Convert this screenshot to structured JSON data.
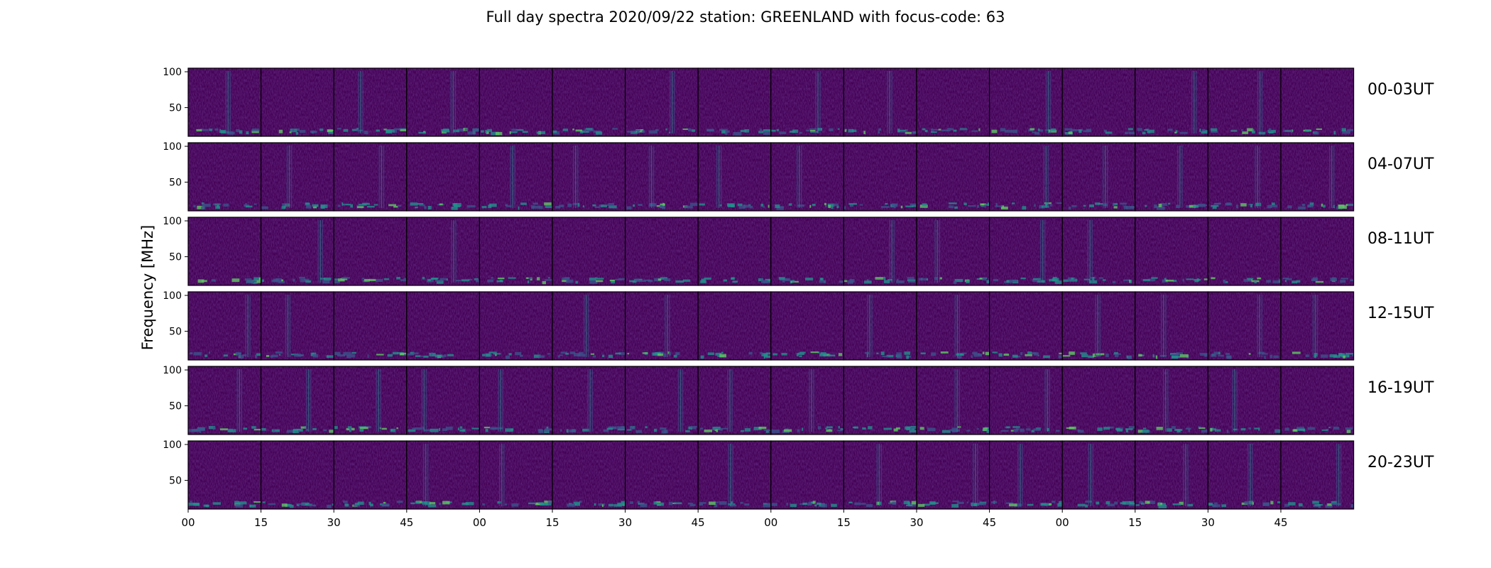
{
  "chart_data": {
    "type": "heatmap",
    "title": "Full day spectra 2020/09/22 station: GREENLAND with focus-code: 63",
    "ylabel": "Frequency [MHz]",
    "xlabel": "",
    "ylim": [
      10,
      105
    ],
    "yticks": [
      100,
      50
    ],
    "xticks": [
      "00",
      "15",
      "30",
      "45",
      "00",
      "15",
      "30",
      "45",
      "00",
      "15",
      "30",
      "45",
      "00",
      "15",
      "30",
      "45"
    ],
    "rows": [
      {
        "label": "00-03UT"
      },
      {
        "label": "04-07UT"
      },
      {
        "label": "08-11UT"
      },
      {
        "label": "12-15UT"
      },
      {
        "label": "16-19UT"
      },
      {
        "label": "20-23UT"
      }
    ],
    "panels_per_row": 16,
    "colormap": [
      "#440154",
      "#3b528b",
      "#21918c",
      "#5ec962",
      "#fde725"
    ]
  }
}
